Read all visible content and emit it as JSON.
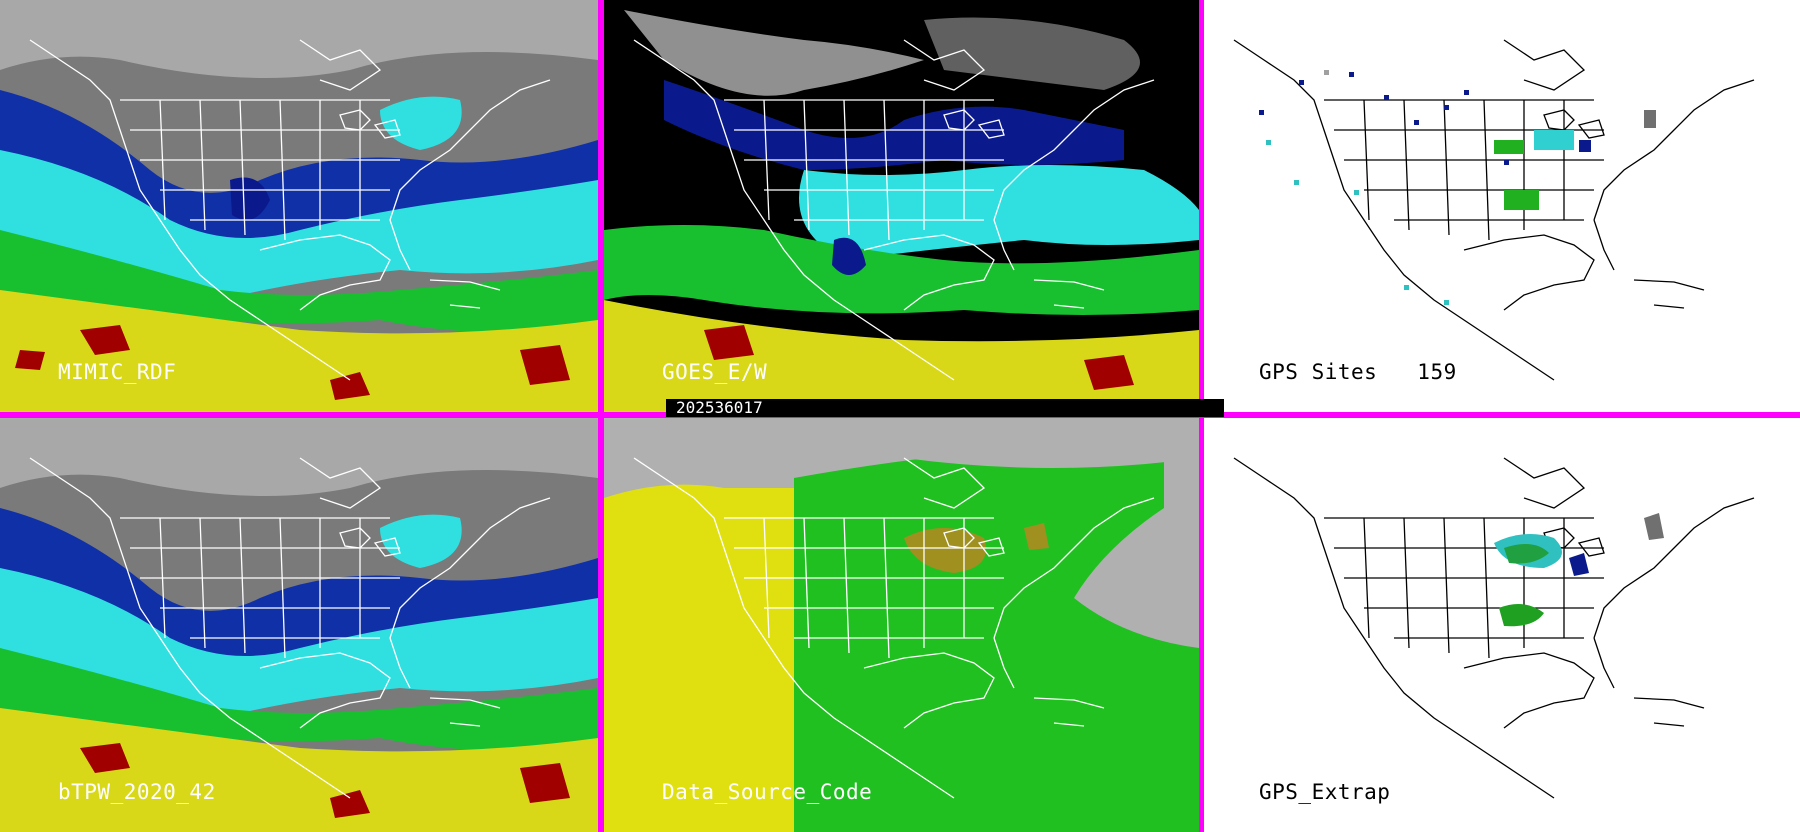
{
  "timestamp": "202536017",
  "panels": [
    {
      "id": "p1",
      "label": "MIMIC_RDF"
    },
    {
      "id": "p2",
      "label": "GOES_E/W"
    },
    {
      "id": "p3",
      "label": "GPS Sites",
      "count": "159"
    },
    {
      "id": "p4",
      "label": "bTPW_2020_42"
    },
    {
      "id": "p5",
      "label": "Data_Source_Code"
    },
    {
      "id": "p6",
      "label": "GPS_Extrap"
    }
  ],
  "colors": {
    "frame": "#ff00ff",
    "dry_gray": "#8a8a8a",
    "navy": "#0a1a8c",
    "blue": "#1f3fd0",
    "cyan": "#2fe0e0",
    "green": "#10c020",
    "yellow": "#d8e010",
    "red": "#a00000",
    "source_gray": "#b0b0b0",
    "source_yellow": "#e0e010",
    "source_green": "#20c020",
    "source_olive": "#a09020"
  }
}
